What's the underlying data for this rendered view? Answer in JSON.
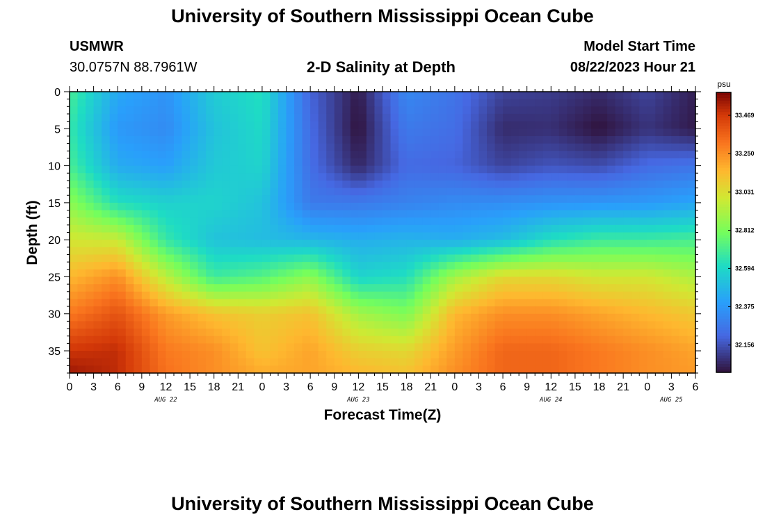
{
  "page": {
    "title_top": "University of Southern Mississippi Ocean Cube",
    "title_bottom": "University of Southern Mississippi Ocean Cube",
    "station_name": "USMWR",
    "station_coords": "30.0757N  88.7961W",
    "start_label": "Model Start Time",
    "start_value": "08/22/2023 Hour 21"
  },
  "chart_data": {
    "type": "heatmap",
    "title": "2-D Salinity at Depth",
    "xlabel": "Forecast Time(Z)",
    "ylabel": "Depth (ft)",
    "units": "psu",
    "x_hours": [
      0,
      78
    ],
    "x_tick_labels": [
      "0",
      "3",
      "6",
      "9",
      "12",
      "15",
      "18",
      "21",
      "0",
      "3",
      "6",
      "9",
      "12",
      "15",
      "18",
      "21",
      "0",
      "3",
      "6",
      "9",
      "12",
      "15",
      "18",
      "21",
      "0",
      "3",
      "6"
    ],
    "date_labels": [
      {
        "text": "AUG 22",
        "hour": 12
      },
      {
        "text": "AUG 23",
        "hour": 36
      },
      {
        "text": "AUG 24",
        "hour": 60
      },
      {
        "text": "AUG 25",
        "hour": 75
      }
    ],
    "ylim": [
      0,
      38
    ],
    "y_ticks": [
      0,
      5,
      10,
      15,
      20,
      25,
      30,
      35
    ],
    "colorbar": {
      "min": 32.0,
      "max": 33.6,
      "labels": [
        "33.469",
        "33.250",
        "33.031",
        "32.812",
        "32.594",
        "32.375",
        "32.156"
      ]
    },
    "grid_hours": [
      0,
      6,
      12,
      18,
      24,
      30,
      36,
      42,
      48,
      54,
      60,
      66,
      72,
      78
    ],
    "grid_depths": [
      0,
      5,
      10,
      15,
      20,
      25,
      30,
      35,
      38
    ],
    "salinity_grid": [
      [
        32.7,
        32.43,
        32.36,
        32.55,
        32.62,
        32.2,
        32.02,
        32.32,
        32.25,
        32.12,
        32.1,
        32.06,
        32.12,
        32.03
      ],
      [
        32.66,
        32.38,
        32.33,
        32.52,
        32.6,
        32.22,
        32.0,
        32.27,
        32.23,
        32.06,
        32.07,
        32.0,
        32.08,
        32.02
      ],
      [
        32.7,
        32.44,
        32.4,
        32.54,
        32.58,
        32.23,
        32.05,
        32.22,
        32.2,
        32.12,
        32.16,
        32.14,
        32.22,
        32.25
      ],
      [
        32.85,
        32.62,
        32.57,
        32.58,
        32.52,
        32.27,
        32.27,
        32.3,
        32.33,
        32.34,
        32.36,
        32.37,
        32.38,
        32.42
      ],
      [
        33.0,
        32.98,
        32.66,
        32.52,
        32.5,
        32.48,
        32.45,
        32.47,
        32.45,
        32.5,
        32.62,
        32.68,
        32.68,
        32.7
      ],
      [
        33.15,
        33.25,
        32.95,
        32.68,
        32.73,
        32.85,
        32.58,
        32.62,
        32.9,
        33.05,
        33.05,
        33.0,
        33.0,
        32.92
      ],
      [
        33.3,
        33.4,
        33.22,
        33.12,
        33.08,
        33.12,
        32.9,
        32.82,
        33.15,
        33.25,
        33.25,
        33.2,
        33.15,
        33.1
      ],
      [
        33.48,
        33.5,
        33.3,
        33.25,
        33.12,
        33.2,
        33.08,
        33.05,
        33.22,
        33.35,
        33.35,
        33.3,
        33.25,
        33.2
      ],
      [
        33.55,
        33.5,
        33.32,
        33.25,
        33.18,
        33.2,
        33.15,
        33.12,
        33.25,
        33.35,
        33.35,
        33.3,
        33.25,
        33.22
      ]
    ],
    "grid": false,
    "legend": "right"
  }
}
